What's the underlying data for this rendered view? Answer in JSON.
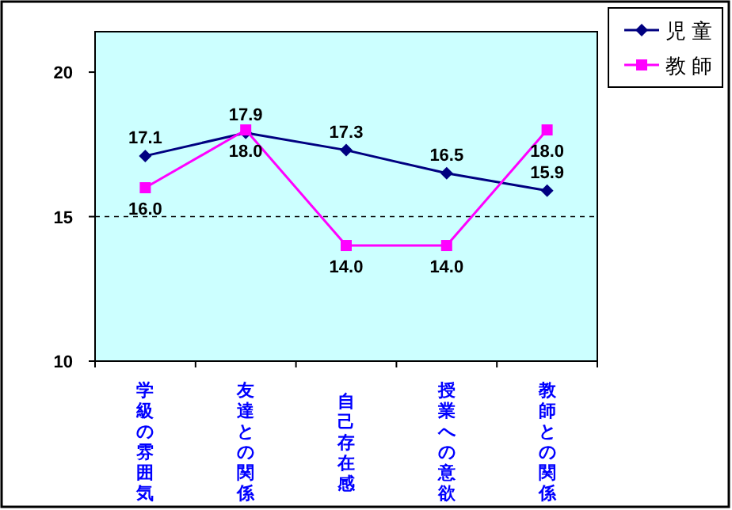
{
  "chart_data": {
    "type": "line",
    "categories": [
      "学級の雰囲気",
      "友達との関係",
      "自己存在感",
      "授業への意欲",
      "教師との関係"
    ],
    "series": [
      {
        "name": "児 童",
        "color": "#000080",
        "marker": "diamond",
        "values": [
          17.1,
          17.9,
          17.3,
          16.5,
          15.9
        ],
        "value_labels": [
          "17.1",
          "17.9",
          "17.3",
          "16.5",
          "15.9"
        ]
      },
      {
        "name": "教 師",
        "color": "#ff00ff",
        "marker": "square",
        "values": [
          16.0,
          18.0,
          14.0,
          14.0,
          18.0
        ],
        "value_labels": [
          "16.0",
          "18.0",
          "14.0",
          "14.0",
          "18.0"
        ]
      }
    ],
    "ylim": [
      10,
      21.4
    ],
    "yticks": [
      10,
      15,
      20
    ],
    "ref_lines": [
      {
        "axis": "y",
        "value": 15,
        "line_style": "dashed",
        "color": "#000000"
      }
    ],
    "grid": false,
    "legend": "top right",
    "line_style": "solid"
  }
}
